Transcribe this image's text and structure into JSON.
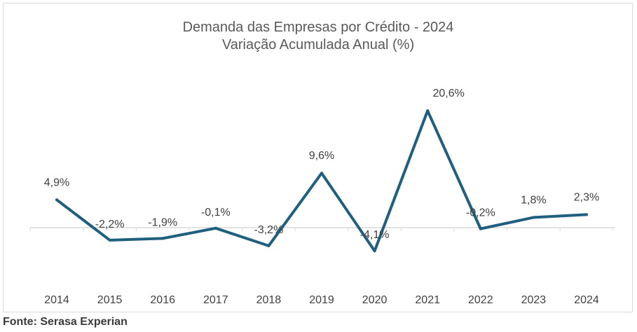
{
  "chart_data": {
    "type": "line",
    "title": "Demanda das Empresas por Crédito - 2024",
    "subtitle": "Variação Acumulada Anual (%)",
    "categories": [
      "2014",
      "2015",
      "2016",
      "2017",
      "2018",
      "2019",
      "2020",
      "2021",
      "2022",
      "2023",
      "2024"
    ],
    "series": [
      {
        "values": [
          4.9,
          -2.2,
          -1.9,
          -0.1,
          -3.2,
          9.6,
          -4.1,
          20.6,
          -0.2,
          1.8,
          2.3
        ],
        "labels": [
          "4,9%",
          "-2,2%",
          "-1,9%",
          "-0,1%",
          "-3,2%",
          "9,6%",
          "-4,1%",
          "20,6%",
          "-0,2%",
          "1,8%",
          "2,3%"
        ],
        "color": "#1f5f7f"
      }
    ],
    "ylim": [
      -12,
      26
    ],
    "grid": false,
    "legend": "none",
    "xlabel": "",
    "ylabel": ""
  },
  "source": "Fonte: Serasa Experian",
  "colors": {
    "line": "#1f5f7f",
    "axis": "#d9d9d9",
    "text": "#404040",
    "title": "#595959"
  }
}
